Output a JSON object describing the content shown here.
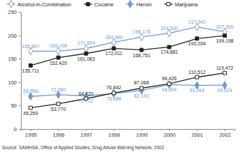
{
  "chart_data": {
    "type": "line",
    "categories": [
      "1995",
      "1996",
      "1997",
      "1998",
      "1999",
      "2000",
      "2001",
      "2002"
    ],
    "ylim": [
      0,
      250
    ],
    "yticks": [
      0,
      50,
      100,
      150,
      200,
      250
    ],
    "grid": false,
    "legend": "top",
    "data_labels": true,
    "annotations": [
      "Source:  SAMHSA, Office of Applied Studies, Drug Abuse Warning Network, 2002"
    ],
    "series": [
      {
        "name": "Alcohol-in-Combination",
        "color": "#6f9bd8",
        "marker": "diamond-open",
        "values": [
          165.897,
          166.166,
          171.894,
          184.989,
          196.178,
          204.5,
          217.94,
          207.395
        ],
        "value_labels": [
          "165,897",
          "166,166",
          "171,894",
          "184,989",
          "196,178",
          "204,500",
          "217,940",
          "207,395"
        ]
      },
      {
        "name": "Cocaine",
        "color": "#222222",
        "marker": "square",
        "values": [
          135.711,
          152.42,
          161.083,
          172.011,
          168.751,
          174.881,
          193.034,
          199.198
        ],
        "value_labels": [
          "135,711",
          "152,420",
          "161,083",
          "172,011",
          "168,751",
          "174,881",
          "193,034",
          "199,198"
        ]
      },
      {
        "name": "Heroin",
        "color": "#6f9bd8",
        "marker": "diamond",
        "values": [
          69.556,
          72.98,
          70.712,
          75.688,
          82.192,
          94.804,
          93.064,
          93.519
        ],
        "value_labels": [
          "69,556",
          "72,980",
          "70,712",
          "75,688",
          "82,192",
          "94,804",
          "93,064",
          "93,519"
        ]
      },
      {
        "name": "Marijuana",
        "color": "#222222",
        "marker": "square-open",
        "values": [
          45.259,
          53.77,
          64.72,
          76.842,
          87.068,
          96.426,
          110.512,
          119.472
        ],
        "value_labels": [
          "45,259",
          "53,770",
          "64,720",
          "76,842",
          "87,068",
          "96,426",
          "110,512",
          "119,472"
        ]
      }
    ]
  }
}
